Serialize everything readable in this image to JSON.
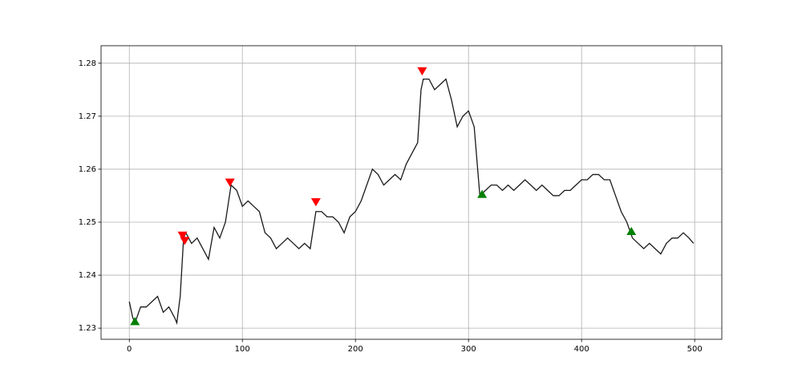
{
  "chart_data": {
    "type": "line",
    "xlim": [
      -25,
      524
    ],
    "ylim": [
      1.2279,
      1.2833
    ],
    "xticks": [
      0,
      100,
      200,
      300,
      400,
      500
    ],
    "yticks": [
      1.23,
      1.24,
      1.25,
      1.26,
      1.27,
      1.28
    ],
    "grid": true,
    "series": [
      {
        "style": "line",
        "color": "#1a1a1a",
        "x": [
          0,
          3,
          5,
          10,
          15,
          20,
          25,
          30,
          35,
          40,
          42,
          45,
          48,
          50,
          55,
          60,
          65,
          70,
          75,
          80,
          85,
          90,
          95,
          100,
          105,
          110,
          115,
          120,
          125,
          130,
          135,
          140,
          145,
          150,
          155,
          160,
          165,
          170,
          175,
          180,
          185,
          190,
          195,
          200,
          205,
          210,
          215,
          220,
          225,
          230,
          235,
          240,
          245,
          250,
          255,
          258,
          260,
          265,
          270,
          275,
          280,
          285,
          290,
          295,
          300,
          305,
          310,
          315,
          320,
          325,
          330,
          335,
          340,
          345,
          350,
          355,
          360,
          365,
          370,
          375,
          380,
          385,
          390,
          395,
          400,
          405,
          410,
          415,
          420,
          425,
          430,
          435,
          440,
          445,
          450,
          455,
          460,
          465,
          470,
          475,
          480,
          485,
          490,
          495,
          499
        ],
        "values": [
          1.235,
          1.232,
          1.231,
          1.234,
          1.234,
          1.235,
          1.236,
          1.233,
          1.234,
          1.232,
          1.231,
          1.236,
          1.247,
          1.248,
          1.246,
          1.247,
          1.245,
          1.243,
          1.249,
          1.247,
          1.25,
          1.257,
          1.256,
          1.253,
          1.254,
          1.253,
          1.252,
          1.248,
          1.247,
          1.245,
          1.246,
          1.247,
          1.246,
          1.245,
          1.246,
          1.245,
          1.252,
          1.252,
          1.251,
          1.251,
          1.25,
          1.248,
          1.251,
          1.252,
          1.254,
          1.257,
          1.26,
          1.259,
          1.257,
          1.258,
          1.259,
          1.258,
          1.261,
          1.263,
          1.265,
          1.275,
          1.277,
          1.277,
          1.275,
          1.276,
          1.277,
          1.273,
          1.268,
          1.27,
          1.271,
          1.268,
          1.255,
          1.256,
          1.257,
          1.257,
          1.256,
          1.257,
          1.256,
          1.257,
          1.258,
          1.257,
          1.256,
          1.257,
          1.256,
          1.255,
          1.255,
          1.256,
          1.256,
          1.257,
          1.258,
          1.258,
          1.259,
          1.259,
          1.258,
          1.258,
          1.255,
          1.252,
          1.25,
          1.247,
          1.246,
          1.245,
          1.246,
          1.245,
          1.244,
          1.246,
          1.247,
          1.247,
          1.248,
          1.247,
          1.246
        ]
      },
      {
        "style": "triangle-down",
        "color": "#ff0000",
        "x": [
          47,
          49,
          89,
          165,
          259
        ],
        "values": [
          1.2475,
          1.2465,
          1.2575,
          1.2538,
          1.2785
        ]
      },
      {
        "style": "triangle-up",
        "color": "#008000",
        "x": [
          5,
          312,
          444
        ],
        "values": [
          1.2313,
          1.2553,
          1.2483
        ]
      }
    ]
  }
}
